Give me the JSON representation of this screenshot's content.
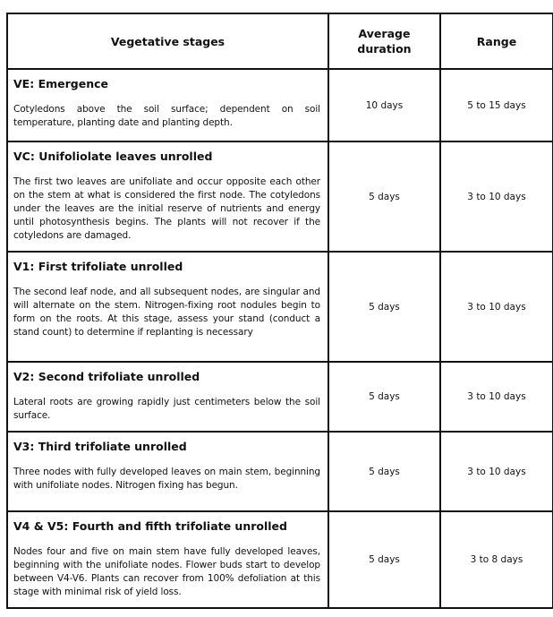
{
  "headers": {
    "stage": "Vegetative stages",
    "duration": "Average duration",
    "range": "Range"
  },
  "rows": [
    {
      "title": "VE:  Emergence",
      "description": "Cotyledons above the soil surface; dependent on soil temperature, planting date and planting depth.",
      "duration": "10 days",
      "range": "5 to 15 days"
    },
    {
      "title": "VC: Unifoliolate leaves unrolled",
      "description": "The first two leaves are unifoliate and occur opposite each other on the stem at what is considered the first node. The cotyledons under the leaves are  the initial reserve of nutrients and energy until photosynthesis begins. The plants will not recover if the cotyledons are damaged.",
      "duration": "5 days",
      "range": "3 to 10 days"
    },
    {
      "title": "V1: First trifoliate unrolled",
      "description": "The second leaf node, and all subsequent nodes, are singular and will alternate on the stem. Nitrogen-fixing root nodules begin to form on the roots. At this stage, assess your stand (conduct a stand count) to determine if replanting is necessary",
      "duration": "5 days",
      "range": "3 to 10 days"
    },
    {
      "title": "V2: Second trifoliate unrolled",
      "description": "Lateral roots are growing rapidly just centimeters below the soil surface.",
      "duration": "5 days",
      "range": "3 to 10 days"
    },
    {
      "title": "V3: Third trifoliate unrolled",
      "description": "Three nodes with fully developed leaves on main stem, beginning with unifoliate nodes. Nitrogen fixing has begun.",
      "duration": "5 days",
      "range": "3 to 10 days"
    },
    {
      "title": "V4 & V5: Fourth and fifth trifoliate unrolled",
      "description": "Nodes four and five on main stem have fully developed leaves, beginning with the unifoliate nodes. Flower buds start to develop between V4-V6. Plants can recover from 100% defoliation at this stage with minimal risk of yield loss.",
      "duration": "5 days",
      "range": "3 to 8 days"
    }
  ]
}
